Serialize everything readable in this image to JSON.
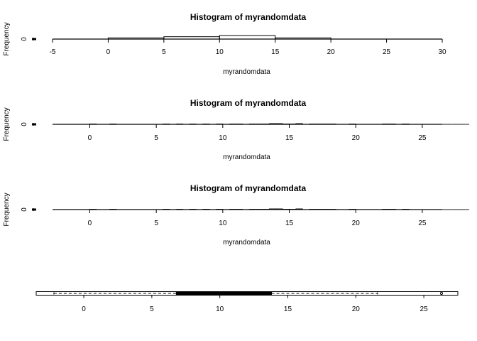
{
  "chart_data": [
    {
      "type": "bar",
      "subtype": "histogram",
      "title": "Histogram of myrandomdata",
      "xlabel": "myrandomdata",
      "ylabel": "Frequency",
      "xlim": [
        -5,
        30
      ],
      "xticks": [
        -5,
        0,
        5,
        10,
        15,
        20,
        25,
        30
      ],
      "xtick_labels": [
        "-5",
        "0",
        "5",
        "10",
        "15",
        "20",
        "25",
        "30"
      ],
      "yticks": [
        0
      ],
      "ytick_labels": [
        "0"
      ],
      "bins": [
        {
          "x0": 0,
          "x1": 5,
          "count": 1
        },
        {
          "x0": 5,
          "x1": 10,
          "count": 2
        },
        {
          "x0": 10,
          "x1": 15,
          "count": 3
        },
        {
          "x0": 15,
          "x1": 20,
          "count": 1
        }
      ],
      "ymax": 3
    },
    {
      "type": "bar",
      "subtype": "histogram",
      "title": "Histogram of myrandomdata",
      "xlabel": "myrandomdata",
      "ylabel": "Frequency",
      "xlim": [
        -2.8,
        26.5
      ],
      "xticks": [
        0,
        5,
        10,
        15,
        20,
        25
      ],
      "xtick_labels": [
        "0",
        "5",
        "10",
        "15",
        "20",
        "25"
      ],
      "yticks": [
        0
      ],
      "ytick_labels": [
        "0"
      ],
      "binwidth": 0.5,
      "bin_start": -2.5,
      "counts": [
        0,
        0,
        0,
        0,
        0,
        1,
        0,
        0,
        1,
        0,
        0,
        0,
        0,
        0,
        0,
        0,
        1,
        0,
        1,
        0,
        1,
        0,
        1,
        0,
        1,
        0,
        1,
        1,
        0,
        1,
        1,
        1,
        2,
        2,
        1,
        1,
        2,
        0,
        1,
        1,
        1,
        1,
        0,
        0,
        1,
        0,
        0,
        0,
        0,
        1,
        1,
        0,
        1,
        0,
        0,
        0,
        0,
        0,
        0,
        0,
        0,
        0
      ],
      "ymax": 10
    },
    {
      "type": "bar",
      "subtype": "histogram",
      "title": "Histogram of myrandomdata",
      "xlabel": "myrandomdata",
      "ylabel": "Frequency",
      "xlim": [
        -2.8,
        26.5
      ],
      "xticks": [
        0,
        5,
        10,
        15,
        20,
        25
      ],
      "xtick_labels": [
        "0",
        "5",
        "10",
        "15",
        "20",
        "25"
      ],
      "yticks": [
        0
      ],
      "ytick_labels": [
        "0"
      ],
      "binwidth": 0.5,
      "bin_start": -2.5,
      "counts": [
        0,
        0,
        0,
        0,
        0,
        1,
        0,
        0,
        1,
        0,
        0,
        0,
        0,
        0,
        0,
        0,
        1,
        0,
        1,
        0,
        1,
        0,
        1,
        0,
        1,
        0,
        1,
        1,
        0,
        1,
        1,
        1,
        2,
        2,
        1,
        1,
        2,
        0,
        1,
        1,
        1,
        1,
        0,
        0,
        1,
        0,
        0,
        0,
        0,
        1,
        1,
        0,
        1,
        0,
        0,
        0,
        0,
        0,
        0,
        0,
        0,
        0
      ],
      "ymax": 10
    },
    {
      "type": "boxplot",
      "orientation": "horizontal",
      "xlim": [
        -3.5,
        27.5
      ],
      "xticks": [
        0,
        5,
        10,
        15,
        20,
        25
      ],
      "xtick_labels": [
        "0",
        "5",
        "10",
        "15",
        "20",
        "25"
      ],
      "whisker_low": -2.2,
      "q1": 6.8,
      "median": 10.7,
      "q3": 13.8,
      "whisker_high": 21.6,
      "outliers": [
        26.3
      ]
    }
  ]
}
